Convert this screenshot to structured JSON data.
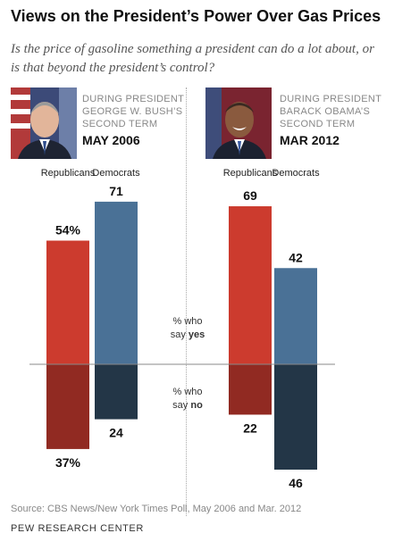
{
  "title": "Views on the President’s Power Over Gas Prices",
  "subtitle": "Is the price of gasoline something a president can do a lot about, or is that beyond the president’s control?",
  "panels": [
    {
      "label_line1": "DURING PRESIDENT",
      "label_line2": "GEORGE W. BUSH’S",
      "label_line3": "SECOND TERM",
      "date": "MAY 2006"
    },
    {
      "label_line1": "DURING PRESIDENT",
      "label_line2": "BARACK OBAMA’S",
      "label_line3": "SECOND TERM",
      "date": "MAR 2012"
    }
  ],
  "notes": {
    "yes_line1": "% who",
    "yes_line2a": "say ",
    "yes_bold": "yes",
    "no_line1": "% who",
    "no_line2a": "say ",
    "no_bold": "no"
  },
  "source": "Source: CBS News/New York Times Poll, May 2006 and Mar. 2012",
  "brand": "PEW RESEARCH CENTER",
  "colors": {
    "rep_yes": "#cc3b2e",
    "rep_no": "#912a22",
    "dem_yes": "#4a7196",
    "dem_no": "#233647",
    "axis": "#888888"
  },
  "chart_data": {
    "type": "bar",
    "title": "Views on the President’s Power Over Gas Prices",
    "groups": [
      {
        "period": "MAY 2006",
        "series": [
          {
            "name": "Republicans",
            "yes": 54,
            "no": 37,
            "yes_label": "54%",
            "no_label": "37%"
          },
          {
            "name": "Democrats",
            "yes": 71,
            "no": 24,
            "yes_label": "71",
            "no_label": "24"
          }
        ]
      },
      {
        "period": "MAR 2012",
        "series": [
          {
            "name": "Republicans",
            "yes": 69,
            "no": 22,
            "yes_label": "69",
            "no_label": "22"
          },
          {
            "name": "Democrats",
            "yes": 42,
            "no": 46,
            "yes_label": "42",
            "no_label": "46"
          }
        ]
      }
    ],
    "legend": [
      "Republicans",
      "Democrats"
    ],
    "ylim": [
      -50,
      75
    ]
  }
}
